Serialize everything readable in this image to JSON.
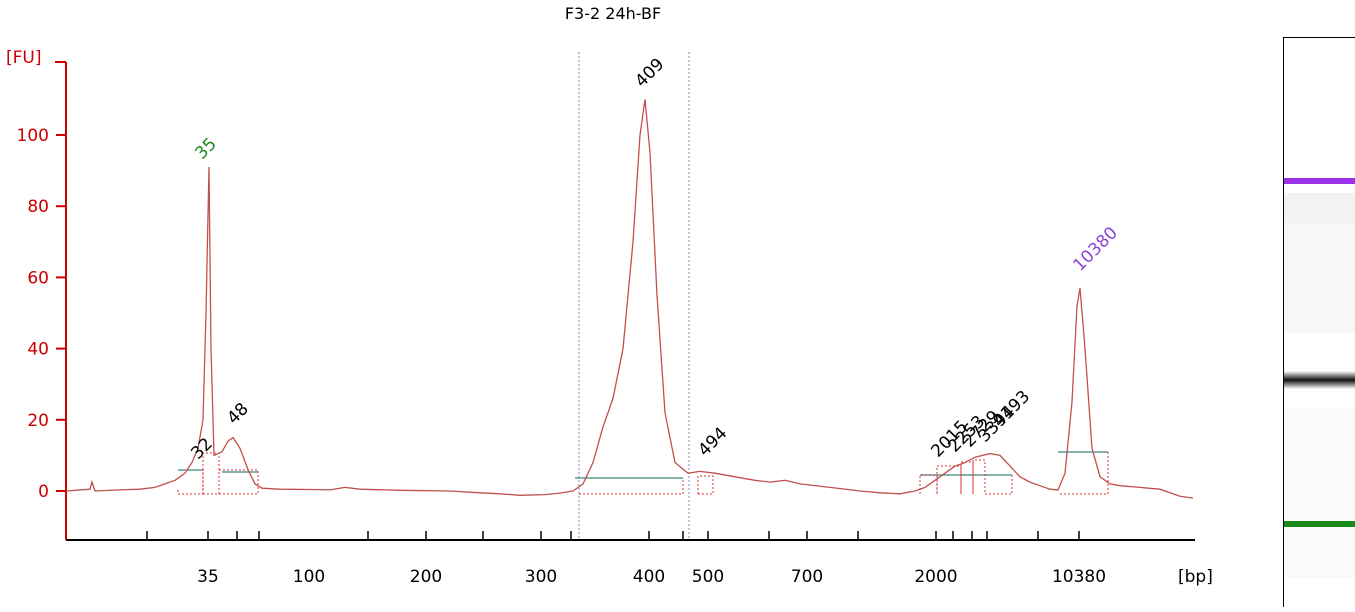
{
  "chart_data": {
    "type": "line",
    "title": "F3-2 24h-BF",
    "ylabel": "[FU]",
    "xlabel": "[bp]",
    "ylim": [
      -13,
      120
    ],
    "yticks": [
      0,
      20,
      40,
      60,
      80,
      100
    ],
    "xtick_labels": [
      "35",
      "100",
      "200",
      "300",
      "400",
      "500",
      "700",
      "2000",
      "10380"
    ],
    "axis_color": "#cc0000",
    "trace_color": "#c0504d",
    "peak_labels": [
      {
        "text": "35",
        "color": "#1a8a1a"
      },
      {
        "text": "32",
        "color": "#000000"
      },
      {
        "text": "48",
        "color": "#000000"
      },
      {
        "text": "409",
        "color": "#000000"
      },
      {
        "text": "494",
        "color": "#000000"
      },
      {
        "text": "2015",
        "color": "#000000"
      },
      {
        "text": "2253",
        "color": "#000000"
      },
      {
        "text": "2729",
        "color": "#000000"
      },
      {
        "text": "3394",
        "color": "#000000"
      },
      {
        "text": "4193",
        "color": "#000000"
      },
      {
        "text": "10380",
        "color": "#8e44d9"
      }
    ],
    "series": [
      {
        "values_fu": [
          0,
          0.5,
          2.5,
          0,
          0.3,
          0.5,
          1,
          2,
          3,
          5,
          8,
          12,
          20,
          50,
          91,
          40,
          10,
          11,
          14,
          15,
          12,
          6,
          2,
          0.8,
          0.5,
          0.4,
          0.3,
          1,
          0.5,
          0.2,
          0,
          -0.5,
          -0.8,
          -1.2,
          -1,
          -0.6,
          0,
          2,
          8,
          18,
          26,
          40,
          70,
          100,
          110,
          95,
          55,
          22,
          8,
          5,
          5.5,
          5,
          4,
          3,
          2.5,
          3,
          2,
          1,
          0,
          -0.5,
          -0.8,
          0,
          1,
          3,
          5,
          7,
          8,
          9.5,
          10.5,
          10,
          7,
          4,
          2.5,
          1.5,
          0.5,
          0.3,
          5,
          25,
          52,
          57,
          40,
          12,
          4,
          2,
          1.5,
          1,
          0.5,
          -1.5,
          -2
        ]
      }
    ],
    "marker_bands": [
      {
        "name": "upper-marker",
        "color": "#9b30e8"
      },
      {
        "name": "lower-marker",
        "color": "#1a8a1a"
      }
    ]
  }
}
